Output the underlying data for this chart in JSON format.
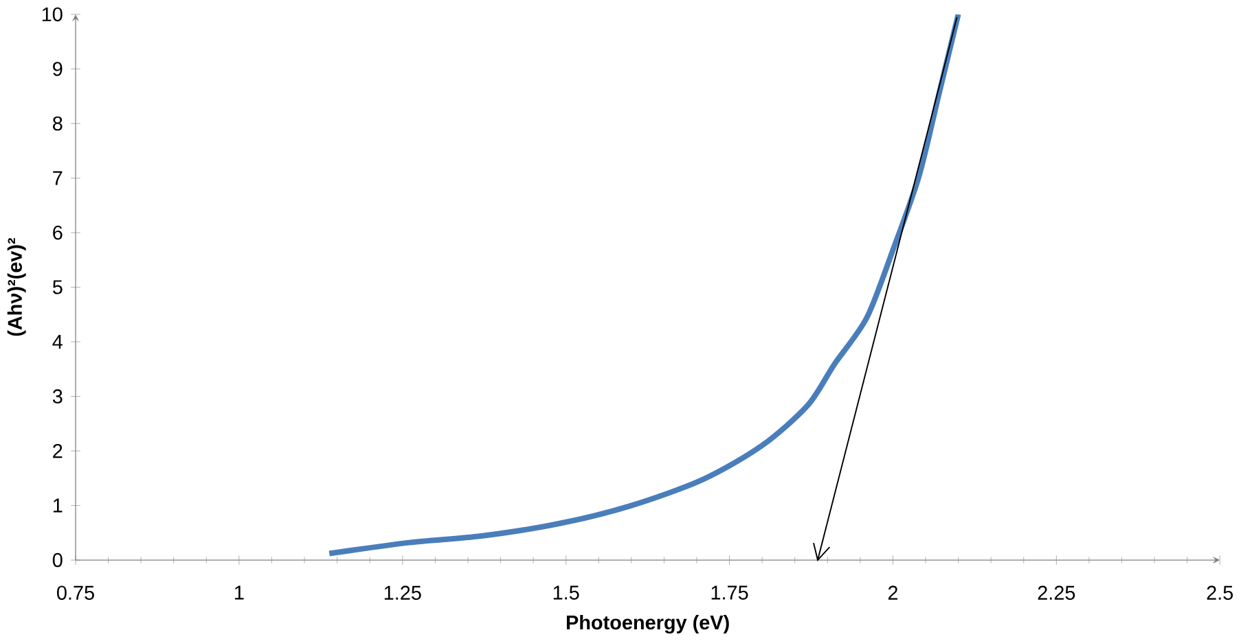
{
  "chart_data": {
    "type": "line",
    "xlabel": "Photoenergy (eV)",
    "ylabel": "(Ahν)²(ev)²",
    "xlim": [
      0.75,
      2.5
    ],
    "ylim": [
      0,
      10
    ],
    "xticks": [
      0.75,
      1,
      1.25,
      1.5,
      1.75,
      2,
      2.25,
      2.5
    ],
    "yticks": [
      0,
      1,
      2,
      3,
      4,
      5,
      6,
      7,
      8,
      9,
      10
    ],
    "grid": false,
    "marker": "none",
    "line_style": "solid",
    "series": [
      {
        "color": "#4a7ebb",
        "x": [
          1.138,
          1.26,
          1.37,
          1.49,
          1.6,
          1.71,
          1.8,
          1.87,
          1.91,
          1.96,
          2.0,
          2.04,
          2.07,
          2.1
        ],
        "values": [
          0.12,
          0.32,
          0.44,
          0.67,
          1.0,
          1.48,
          2.1,
          2.84,
          3.58,
          4.44,
          5.68,
          7.04,
          8.52,
          10.0
        ]
      },
      {
        "type": "line",
        "color": "#000000",
        "x": [
          2.098,
          1.885
        ],
        "values": [
          9.95,
          0
        ]
      }
    ]
  }
}
